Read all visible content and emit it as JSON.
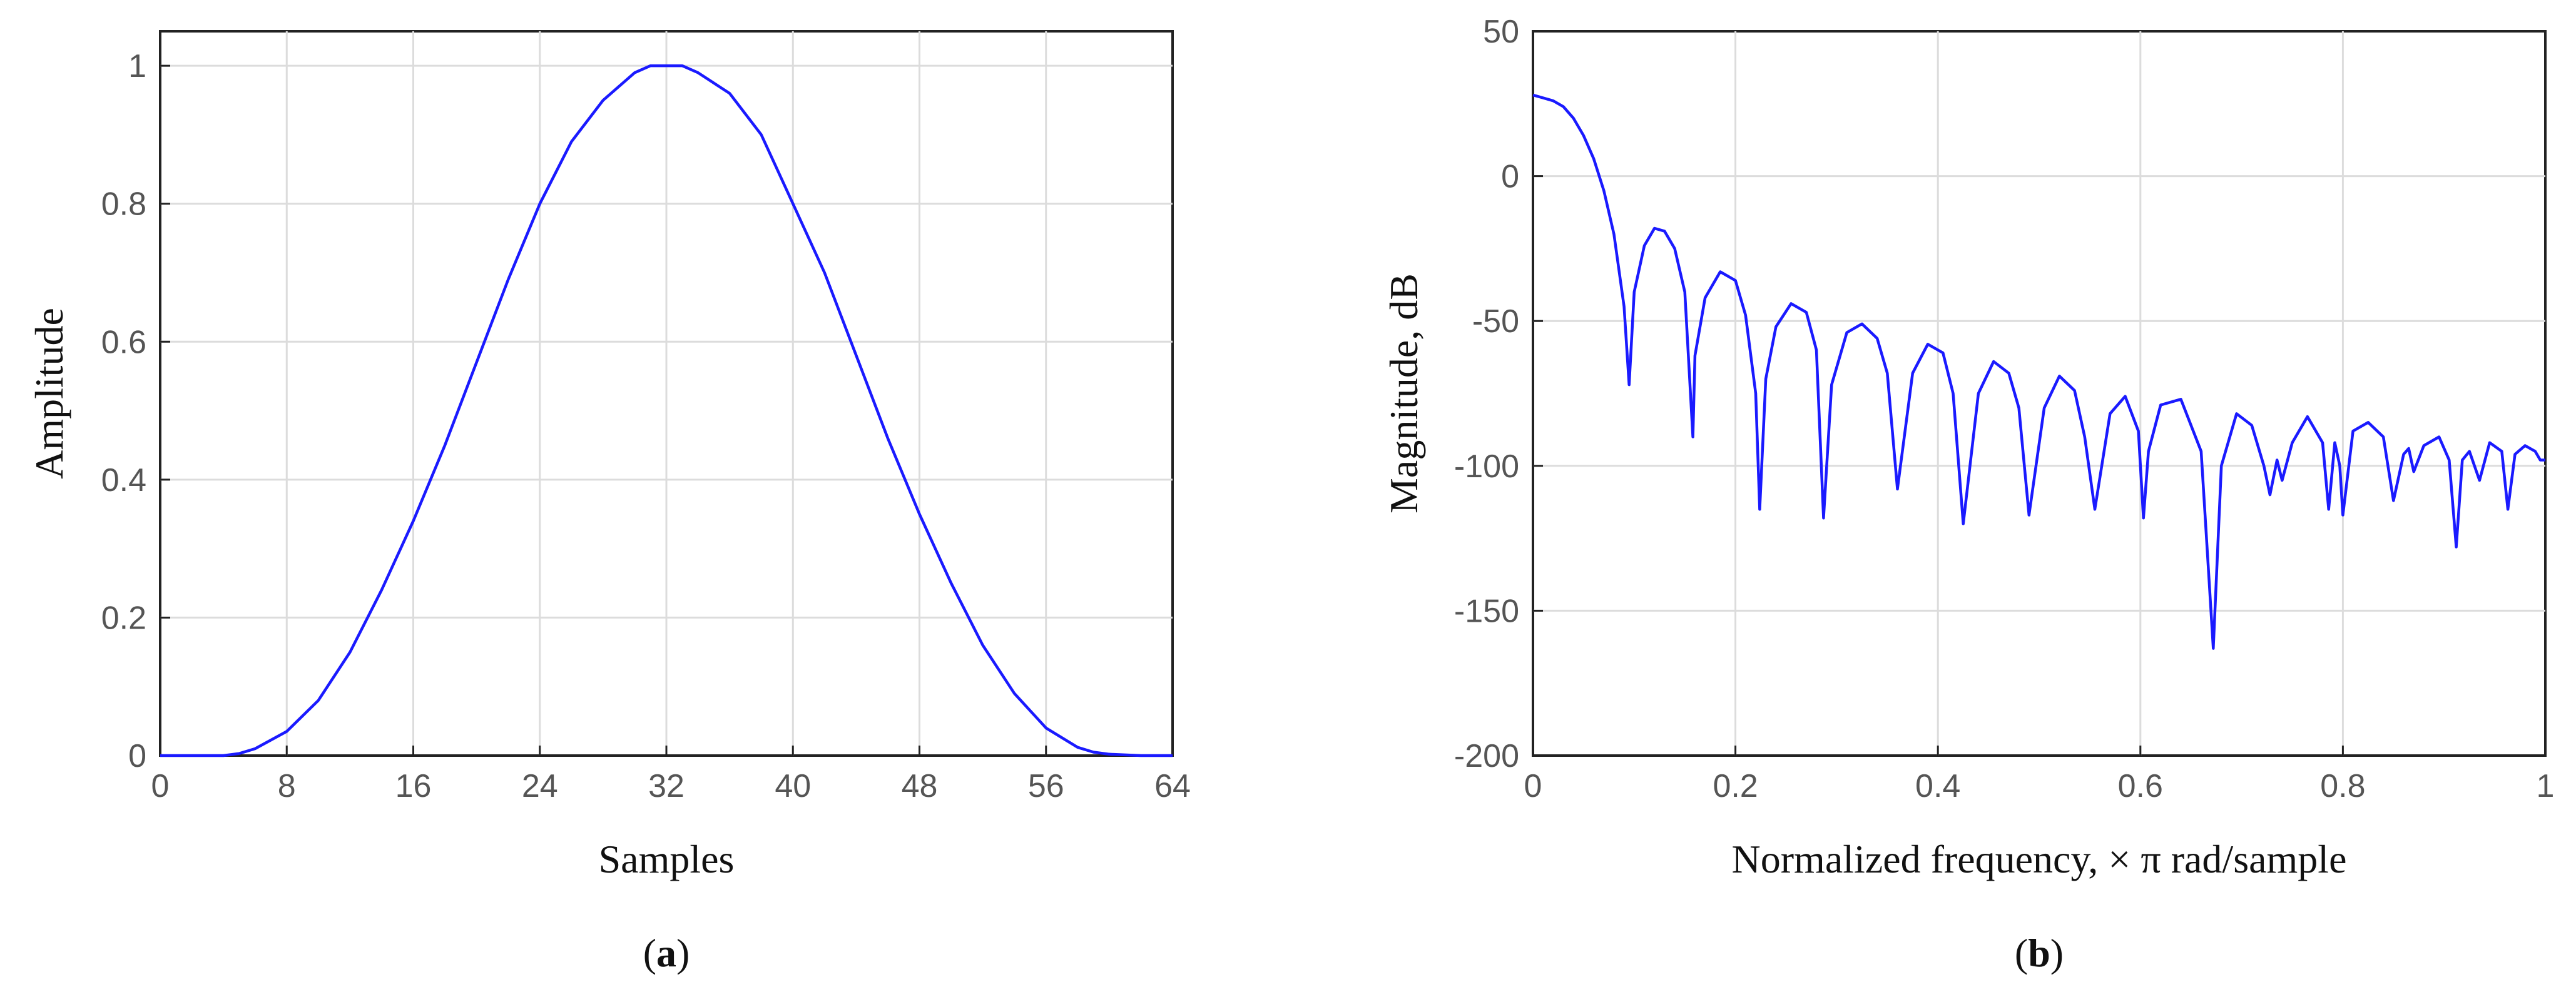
{
  "chart_data": [
    {
      "type": "line",
      "title": "",
      "panel_label": "a",
      "xlabel": "Samples",
      "ylabel": "Amplitude",
      "xlim": [
        0,
        64
      ],
      "ylim": [
        0,
        1.05
      ],
      "xticks": [
        0,
        8,
        16,
        24,
        32,
        40,
        48,
        56,
        64
      ],
      "yticks": [
        0,
        0.2,
        0.4,
        0.6,
        0.8,
        1
      ],
      "ytick_labels": [
        "0",
        "0.2",
        "0.4",
        "0.6",
        "0.8",
        "1"
      ],
      "grid": true,
      "color": "#1a1aff",
      "series": [
        {
          "x": [
            0,
            2,
            4,
            5,
            6,
            8,
            10,
            12,
            14,
            16,
            18,
            20,
            22,
            24,
            26,
            28,
            30,
            31,
            32,
            33,
            34,
            36,
            38,
            40,
            42,
            44,
            46,
            48,
            50,
            52,
            54,
            56,
            58,
            59,
            60,
            62,
            64
          ],
          "values": [
            0,
            0,
            0,
            0.003,
            0.01,
            0.035,
            0.08,
            0.15,
            0.24,
            0.34,
            0.45,
            0.57,
            0.69,
            0.8,
            0.89,
            0.95,
            0.99,
            1,
            1,
            1,
            0.99,
            0.96,
            0.9,
            0.8,
            0.7,
            0.58,
            0.46,
            0.35,
            0.25,
            0.16,
            0.09,
            0.04,
            0.012,
            0.005,
            0.002,
            0,
            0
          ]
        }
      ]
    },
    {
      "type": "line",
      "title": "",
      "panel_label": "b",
      "xlabel": "Normalized frequency, × π rad/sample",
      "ylabel": "Magnitude, dB",
      "xlim": [
        0,
        1
      ],
      "ylim": [
        -200,
        50
      ],
      "xticks": [
        0,
        0.2,
        0.4,
        0.6,
        0.8,
        1
      ],
      "xtick_labels": [
        "0",
        "0.2",
        "0.4",
        "0.6",
        "0.8",
        "1"
      ],
      "yticks": [
        -200,
        -150,
        -100,
        -50,
        0,
        50
      ],
      "grid": true,
      "color": "#1a1aff",
      "series": [
        {
          "x": [
            0,
            0.01,
            0.02,
            0.03,
            0.04,
            0.05,
            0.06,
            0.07,
            0.08,
            0.09,
            0.095,
            0.1,
            0.11,
            0.12,
            0.13,
            0.14,
            0.15,
            0.158,
            0.16,
            0.17,
            0.185,
            0.2,
            0.21,
            0.22,
            0.224,
            0.23,
            0.24,
            0.255,
            0.27,
            0.28,
            0.287,
            0.295,
            0.31,
            0.325,
            0.34,
            0.35,
            0.36,
            0.375,
            0.39,
            0.405,
            0.415,
            0.425,
            0.44,
            0.455,
            0.47,
            0.48,
            0.49,
            0.505,
            0.52,
            0.535,
            0.545,
            0.555,
            0.57,
            0.585,
            0.598,
            0.603,
            0.608,
            0.62,
            0.64,
            0.66,
            0.672,
            0.68,
            0.695,
            0.71,
            0.722,
            0.728,
            0.735,
            0.74,
            0.75,
            0.765,
            0.78,
            0.786,
            0.792,
            0.797,
            0.8,
            0.81,
            0.825,
            0.84,
            0.85,
            0.86,
            0.865,
            0.87,
            0.88,
            0.895,
            0.905,
            0.912,
            0.918,
            0.925,
            0.935,
            0.945,
            0.957,
            0.963,
            0.97,
            0.98,
            0.99,
            0.995,
            1
          ],
          "values": [
            28,
            27,
            26,
            24,
            20,
            14,
            6,
            -5,
            -20,
            -45,
            -72,
            -40,
            -24,
            -18,
            -19,
            -25,
            -40,
            -90,
            -62,
            -42,
            -33,
            -36,
            -48,
            -75,
            -115,
            -70,
            -52,
            -44,
            -47,
            -60,
            -118,
            -72,
            -54,
            -51,
            -56,
            -68,
            -108,
            -68,
            -58,
            -61,
            -75,
            -120,
            -75,
            -64,
            -68,
            -80,
            -117,
            -80,
            -69,
            -74,
            -90,
            -115,
            -82,
            -76,
            -88,
            -118,
            -95,
            -79,
            -77,
            -95,
            -163,
            -100,
            -82,
            -86,
            -100,
            -110,
            -98,
            -105,
            -92,
            -83,
            -92,
            -115,
            -92,
            -100,
            -117,
            -88,
            -85,
            -90,
            -112,
            -96,
            -94,
            -102,
            -93,
            -90,
            -98,
            -128,
            -98,
            -95,
            -105,
            -92,
            -95,
            -115,
            -96,
            -93,
            -95,
            -98,
            -98
          ]
        }
      ]
    }
  ]
}
